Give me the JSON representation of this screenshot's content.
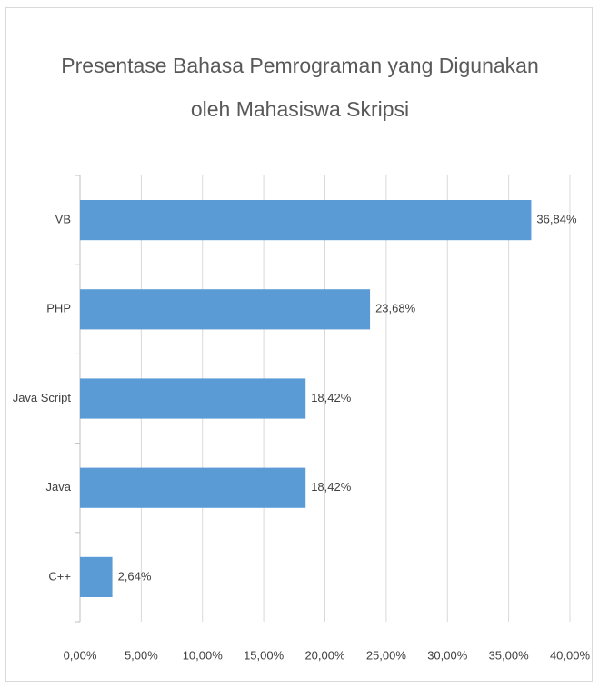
{
  "chart_data": {
    "type": "bar",
    "orientation": "horizontal",
    "title": "Presentase Bahasa Pemrograman yang Digunakan oleh Mahasiswa Skripsi",
    "categories": [
      "VB",
      "PHP",
      "Java Script",
      "Java",
      "C++"
    ],
    "values": [
      36.84,
      23.68,
      18.42,
      18.42,
      2.64
    ],
    "value_labels": [
      "36,84%",
      "23,68%",
      "18,42%",
      "18,42%",
      "2,64%"
    ],
    "color": "#5b9bd5",
    "xlim": [
      0,
      40
    ],
    "xticks": [
      {
        "value": 0,
        "label": "0,00%"
      },
      {
        "value": 5,
        "label": "5,00%"
      },
      {
        "value": 10,
        "label": "10,00%"
      },
      {
        "value": 15,
        "label": "15,00%"
      },
      {
        "value": 20,
        "label": "20,00%"
      },
      {
        "value": 25,
        "label": "25,00%"
      },
      {
        "value": 30,
        "label": "30,00%"
      },
      {
        "value": 35,
        "label": "35,00%"
      },
      {
        "value": 40,
        "label": "40,00%"
      }
    ],
    "grid": true
  }
}
